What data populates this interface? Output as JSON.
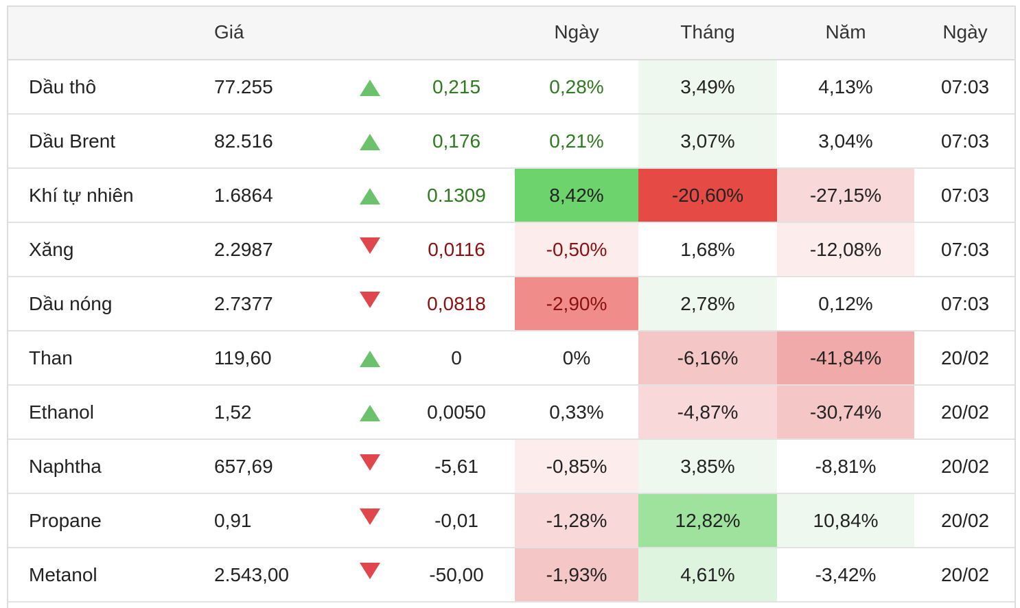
{
  "header": {
    "col_name": "",
    "col_price": "Giá",
    "col_arrow": "",
    "col_change": "",
    "col_day": "Ngày",
    "col_month": "Tháng",
    "col_year": "Năm",
    "col_date": "Ngày"
  },
  "colors": {
    "up_arrow": "#6cc26c",
    "down_arrow": "#e0474c",
    "positive_text": "#2d7a1f",
    "negative_text": "#8b1010"
  },
  "rows": [
    {
      "name": "Dầu thô",
      "price": "77.255",
      "direction": "up",
      "change": "0,215",
      "change_color": "pos",
      "day": "0,28%",
      "day_color": "pos",
      "day_bg": "",
      "month": "3,49%",
      "month_bg": "#eef8ee",
      "year": "4,13%",
      "year_bg": "",
      "date": "07:03"
    },
    {
      "name": "Dầu Brent",
      "price": "82.516",
      "direction": "up",
      "change": "0,176",
      "change_color": "pos",
      "day": "0,21%",
      "day_color": "pos",
      "day_bg": "",
      "month": "3,07%",
      "month_bg": "#eef8ee",
      "year": "3,04%",
      "year_bg": "",
      "date": "07:03"
    },
    {
      "name": "Khí tự nhiên",
      "price": "1.6864",
      "direction": "up",
      "change": "0.1309",
      "change_color": "pos",
      "day": "8,42%",
      "day_color": "neutral",
      "day_bg": "#6dd36d",
      "month": "-20,60%",
      "month_bg": "#e64a45",
      "year": "-27,15%",
      "year_bg": "#f8d8d8",
      "date": "07:03"
    },
    {
      "name": "Xăng",
      "price": "2.2987",
      "direction": "down",
      "change": "0,0116",
      "change_color": "neg",
      "day": "-0,50%",
      "day_color": "neg",
      "day_bg": "#fcecec",
      "month": "1,68%",
      "month_bg": "",
      "year": "-12,08%",
      "year_bg": "#fcecec",
      "date": "07:03"
    },
    {
      "name": "Dầu nóng",
      "price": "2.7377",
      "direction": "down",
      "change": "0,0818",
      "change_color": "neg",
      "day": "-2,90%",
      "day_color": "neg",
      "day_bg": "#f08c8a",
      "month": "2,78%",
      "month_bg": "#eef8ee",
      "year": "0,12%",
      "year_bg": "",
      "date": "07:03"
    },
    {
      "name": "Than",
      "price": "119,60",
      "direction": "up",
      "change": "0",
      "change_color": "neutral",
      "day": "0%",
      "day_color": "neutral",
      "day_bg": "",
      "month": "-6,16%",
      "month_bg": "#f4c6c6",
      "year": "-41,84%",
      "year_bg": "#f0aaa9",
      "date": "20/02"
    },
    {
      "name": "Ethanol",
      "price": "1,52",
      "direction": "up",
      "change": "0,0050",
      "change_color": "neutral",
      "day": "0,33%",
      "day_color": "neutral",
      "day_bg": "",
      "month": "-4,87%",
      "month_bg": "#f8d8d8",
      "year": "-30,74%",
      "year_bg": "#f4c6c6",
      "date": "20/02"
    },
    {
      "name": "Naphtha",
      "price": "657,69",
      "direction": "down",
      "change": "-5,61",
      "change_color": "neutral",
      "day": "-0,85%",
      "day_color": "neutral",
      "day_bg": "#fcecec",
      "month": "3,85%",
      "month_bg": "#eef8ee",
      "year": "-8,81%",
      "year_bg": "",
      "date": "20/02"
    },
    {
      "name": "Propane",
      "price": "0,91",
      "direction": "down",
      "change": "-0,01",
      "change_color": "neutral",
      "day": "-1,28%",
      "day_color": "neutral",
      "day_bg": "#f8d8d8",
      "month": "12,82%",
      "month_bg": "#9ee29e",
      "year": "10,84%",
      "year_bg": "#eef8ee",
      "date": "20/02"
    },
    {
      "name": "Metanol",
      "price": "2.543,00",
      "direction": "down",
      "change": "-50,00",
      "change_color": "neutral",
      "day": "-1,93%",
      "day_color": "neutral",
      "day_bg": "#f4c6c6",
      "month": "4,61%",
      "month_bg": "#def4de",
      "year": "-3,42%",
      "year_bg": "",
      "date": "20/02"
    }
  ]
}
